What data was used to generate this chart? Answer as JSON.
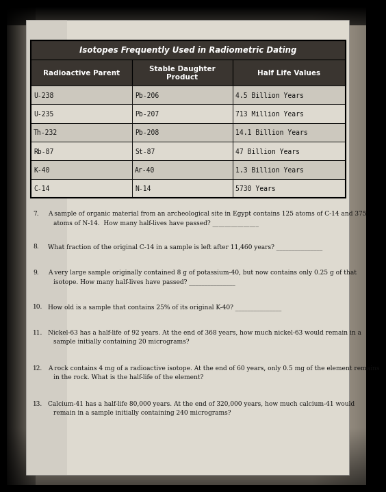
{
  "title": "Isotopes Frequently Used in Radiometric Dating",
  "col_headers": [
    "Radioactive Parent",
    "Stable Daughter\nProduct",
    "Half Life Values"
  ],
  "table_data": [
    [
      "U-238",
      "Pb-206",
      "4.5 Billion Years"
    ],
    [
      "U-235",
      "Pb-207",
      "713 Million Years"
    ],
    [
      "Th-232",
      "Pb-208",
      "14.1 Billion Years"
    ],
    [
      "Rb-87",
      "St-87",
      "47 Billion Years"
    ],
    [
      "K-40",
      "Ar-40",
      "1.3 Billion Years"
    ],
    [
      "C-14",
      "N-14",
      "5730 Years"
    ]
  ],
  "questions": [
    {
      "num": "7.",
      "text": "A sample of organic material from an archeological site in Egypt contains 125 atoms of C-14 and 375\natoms of N-14.  How many half-lives have passed? _______________"
    },
    {
      "num": "8.",
      "text": "What fraction of the original C-14 in a sample is left after 11,460 years? _______________"
    },
    {
      "num": "9.",
      "text": "A very large sample originally contained 8 g of potassium-40, but now contains only 0.25 g of that\nisotope. How many half-lives have passed? _______________"
    },
    {
      "num": "10.",
      "text": "How old is a sample that contains 25% of its original K-40? _______________"
    },
    {
      "num": "11.",
      "text": "Nickel-63 has a half-life of 92 years. At the end of 368 years, how much nickel-63 would remain in a\nsample initially containing 20 micrograms?"
    },
    {
      "num": "12.",
      "text": "A rock contains 4 mg of a radioactive isotope. At the end of 60 years, only 0.5 mg of the element remains\nin the rock. What is the half-life of the element?"
    },
    {
      "num": "13.",
      "text": "Calcium-41 has a half-life 80,000 years. At the end of 320,000 years, how much calcium-41 would\nremain in a sample initially containing 240 micrograms?"
    }
  ],
  "bg_dark": "#1a1a1a",
  "bg_mid": "#7a7060",
  "paper_color": "#dedad0",
  "paper_color2": "#c8c4bc",
  "header_bg": "#3a3530",
  "header_fg": "#ffffff",
  "cell_bg_even": "#ccc8be",
  "cell_bg_odd": "#dedad0",
  "table_border": "#000000",
  "text_color": "#111111"
}
